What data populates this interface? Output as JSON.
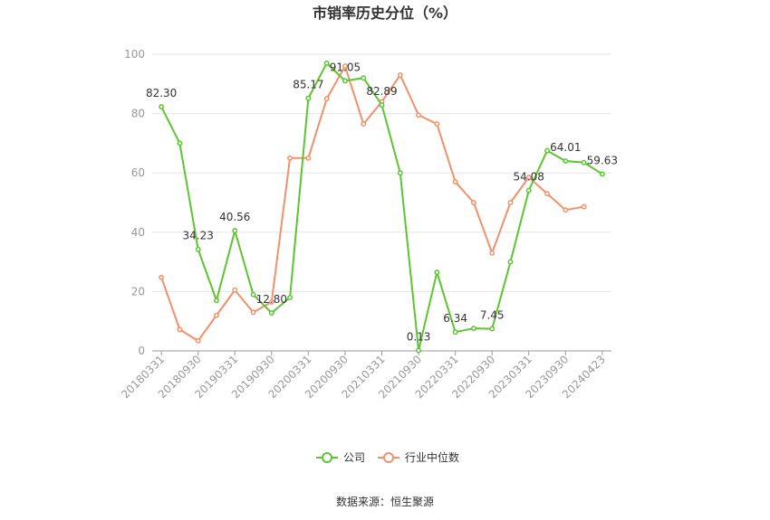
{
  "chart_data": {
    "type": "line",
    "title": "市销率历史分位（%）",
    "source": "数据来源：恒生聚源",
    "ylim": [
      0,
      100
    ],
    "yticks": [
      0,
      20,
      40,
      60,
      80,
      100
    ],
    "xtick_labels": [
      "20180331",
      "20180930",
      "20190331",
      "20190930",
      "20200331",
      "20200930",
      "20210331",
      "20210930",
      "20220331",
      "20220930",
      "20230331",
      "20230930",
      "20240423"
    ],
    "x": [
      "20180331",
      "20180630",
      "20180930",
      "20181231",
      "20190331",
      "20190630",
      "20190930",
      "20191231",
      "20200331",
      "20200630",
      "20200930",
      "20201231",
      "20210331",
      "20210630",
      "20210930",
      "20211231",
      "20220331",
      "20220630",
      "20220930",
      "20221231",
      "20230331",
      "20230630",
      "20230930",
      "20231231",
      "20240423"
    ],
    "grid": true,
    "legend": "bottom",
    "series": [
      {
        "name": "公司",
        "color": "#5cc530",
        "values": [
          82.3,
          70.0,
          34.23,
          17.0,
          40.56,
          19.0,
          12.8,
          18.0,
          85.17,
          97.0,
          91.05,
          92.0,
          82.89,
          60.0,
          0.13,
          26.5,
          6.34,
          7.6,
          7.45,
          30.0,
          54.08,
          67.5,
          64.01,
          63.5,
          59.63
        ],
        "labels": {
          "0": "82.30",
          "2": "34.23",
          "4": "40.56",
          "6": "12.80",
          "8": "85.17",
          "10": "91.05",
          "12": "82.89",
          "14": "0.13",
          "16": "6.34",
          "18": "7.45",
          "20": "54.08",
          "22": "64.01",
          "24": "59.63"
        }
      },
      {
        "name": "行业中位数",
        "color": "#f0916b",
        "values": [
          24.8,
          7.2,
          3.4,
          12.0,
          20.5,
          13.0,
          16.5,
          65.0,
          65.0,
          85.0,
          96.0,
          76.5,
          84.0,
          93.0,
          79.5,
          76.5,
          57.0,
          50.0,
          33.0,
          50.0,
          58.5,
          53.0,
          47.5,
          48.6,
          null
        ]
      }
    ]
  }
}
